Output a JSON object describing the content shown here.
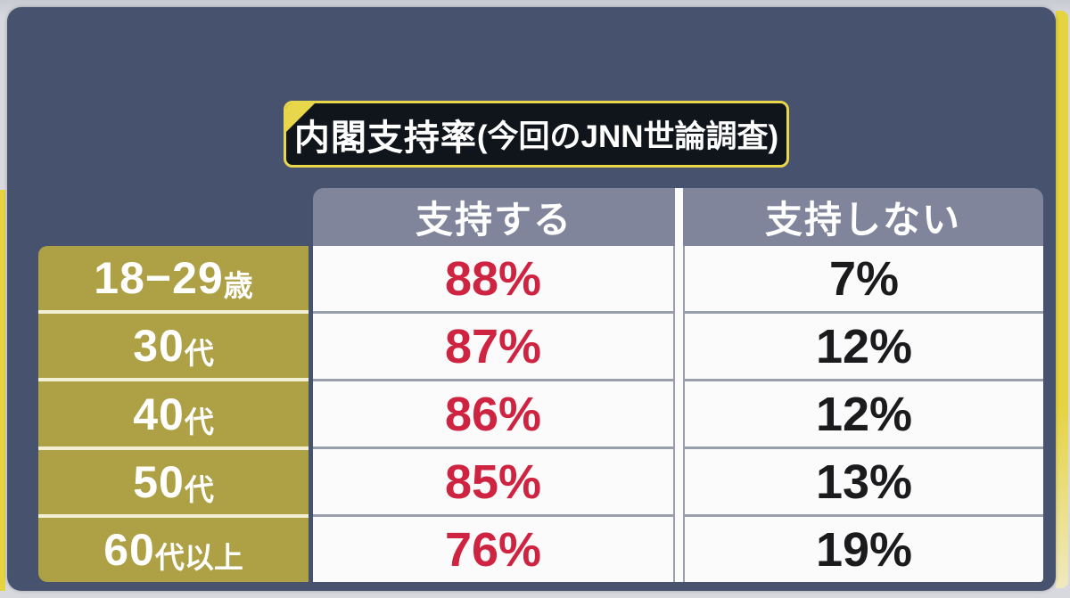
{
  "title": {
    "main": "内閣支持率",
    "paren": "(今回のJNN世論調査)"
  },
  "table": {
    "columns": [
      {
        "label": "支持する"
      },
      {
        "label": "支持しない"
      }
    ],
    "rows": [
      {
        "label_main": "18−29",
        "label_suffix": "歳",
        "support": "88%",
        "oppose": "7%"
      },
      {
        "label_main": "30",
        "label_suffix": "代",
        "support": "87%",
        "oppose": "12%"
      },
      {
        "label_main": "40",
        "label_suffix": "代",
        "support": "86%",
        "oppose": "12%"
      },
      {
        "label_main": "50",
        "label_suffix": "代",
        "support": "85%",
        "oppose": "13%"
      },
      {
        "label_main": "60",
        "label_suffix": "代以上",
        "support": "76%",
        "oppose": "19%"
      }
    ]
  },
  "colors": {
    "panel_navy": "#47526e",
    "header_slate": "#80859c",
    "label_olive": "#aea045",
    "accent_yellow": "#e8d74a",
    "support_red": "#ce2441",
    "oppose_black": "#1b1b1d",
    "cell_white": "#fbfbfb",
    "banner_black": "#10151c"
  },
  "chart_data": {
    "type": "table",
    "title": "内閣支持率(今回のJNN世論調査)",
    "categories": [
      "18−29歳",
      "30代",
      "40代",
      "50代",
      "60代以上"
    ],
    "series": [
      {
        "name": "支持する",
        "unit": "%",
        "color": "#ce2441",
        "values": [
          88,
          87,
          86,
          85,
          76
        ]
      },
      {
        "name": "支持しない",
        "unit": "%",
        "color": "#1b1b1d",
        "values": [
          7,
          12,
          12,
          13,
          19
        ]
      }
    ]
  }
}
